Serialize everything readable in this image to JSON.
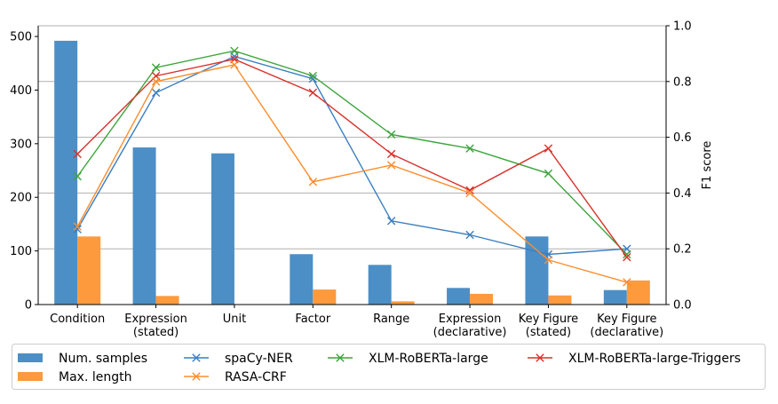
{
  "chart_data": {
    "type": "bar+line",
    "categories": [
      [
        "Condition"
      ],
      [
        "Expression",
        "(stated)"
      ],
      [
        "Unit"
      ],
      [
        "Factor"
      ],
      [
        "Range"
      ],
      [
        "Expression",
        "(declarative)"
      ],
      [
        "Key Figure",
        "(stated)"
      ],
      [
        "Key Figure",
        "(declarative)"
      ]
    ],
    "bar_series": [
      {
        "name": "Num. samples",
        "color": "#4c8fc6",
        "values": [
          492,
          293,
          282,
          94,
          74,
          31,
          127,
          27
        ]
      },
      {
        "name": "Max. length",
        "color": "#fd9a3d",
        "values": [
          127,
          16,
          0,
          28,
          6,
          20,
          17,
          45
        ]
      }
    ],
    "line_series": [
      {
        "name": "spaCy-NER",
        "color": "#3b7ec0",
        "values": [
          0.27,
          0.76,
          0.89,
          0.81,
          0.3,
          0.25,
          0.18,
          0.2
        ]
      },
      {
        "name": "XLM-RoBERTa-large",
        "color": "#3da43d",
        "values": [
          0.46,
          0.85,
          0.91,
          0.82,
          0.61,
          0.56,
          0.47,
          0.18
        ]
      },
      {
        "name": "XLM-RoBERTa-large-Triggers",
        "color": "#d9312b",
        "values": [
          0.54,
          0.82,
          0.88,
          0.76,
          0.54,
          0.41,
          0.56,
          0.17
        ]
      },
      {
        "name": "RASA-CRF",
        "color": "#fd8d2c",
        "values": [
          0.28,
          0.8,
          0.86,
          0.44,
          0.5,
          0.4,
          0.16,
          0.08
        ]
      }
    ],
    "y_left": {
      "label": "",
      "ylim": [
        0,
        520
      ],
      "ticks": [
        0,
        100,
        200,
        300,
        400,
        500
      ]
    },
    "y_right": {
      "label": "F1 score",
      "ylim": [
        0,
        1.0
      ],
      "ticks": [
        "0.0",
        "0.2",
        "0.4",
        "0.6",
        "0.8",
        "1.0"
      ]
    },
    "grid": "horizontal",
    "legend": {
      "position": "bottom",
      "order": [
        "Num. samples",
        "spaCy-NER",
        "XLM-RoBERTa-large",
        "XLM-RoBERTa-large-Triggers",
        "Max. length",
        "RASA-CRF"
      ]
    }
  }
}
